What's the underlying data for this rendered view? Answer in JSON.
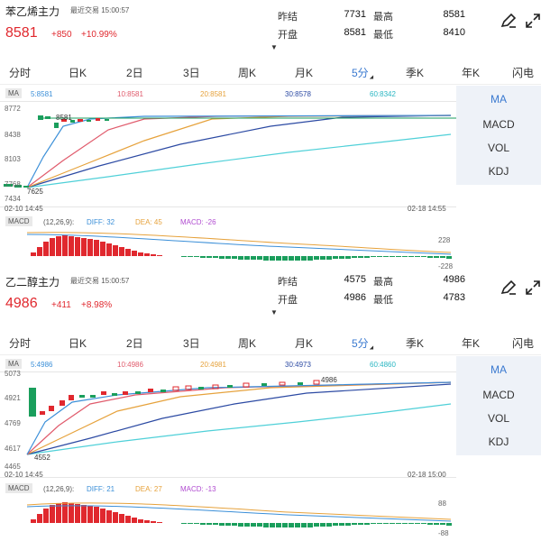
{
  "colors": {
    "up": "#e0282e",
    "down": "#1a9e5c",
    "accent": "#3a79d0",
    "ma5": "#3b8fd8",
    "ma10": "#e05b6c",
    "ma20": "#e6a23c",
    "ma30": "#2c4aa3",
    "ma60": "#4fd0d8"
  },
  "tabs": [
    "分时",
    "日K",
    "2日",
    "3日",
    "周K",
    "月K",
    "5分",
    "季K",
    "年K",
    "闪电"
  ],
  "active_tab": "5分",
  "side_options": [
    "MA",
    "MACD",
    "VOL",
    "KDJ"
  ],
  "icons": {
    "draw": "pencil-icon",
    "expand": "expand-icon"
  },
  "panels": [
    {
      "name": "苯乙烯主力",
      "recent": "最近交易 15:00:57",
      "price": "8581",
      "change": "+850",
      "change_pct": "+10.99%",
      "stats": [
        {
          "label": "昨结",
          "value": "7731"
        },
        {
          "label": "最高",
          "value": "8581"
        },
        {
          "label": "开盘",
          "value": "8581"
        },
        {
          "label": "最低",
          "value": "8410"
        }
      ],
      "ma": {
        "tag": "MA",
        "ma5": "5:8581",
        "ma10": "10:8581",
        "ma20": "20:8581",
        "ma30": "30:8578",
        "ma60": "60:8342"
      },
      "y_labels": [
        "8772",
        "8438",
        "8103",
        "7768",
        "7434"
      ],
      "marks": {
        "high": "8581",
        "low": "7625"
      },
      "time_start": "02-10 14:45",
      "time_end": "02-18 14:55",
      "macd": {
        "tag": "MACD",
        "params": "(12,26,9):",
        "diff": "DIFF: 32",
        "dea": "DEA: 45",
        "macd": "MACD: -26",
        "top": "228",
        "bottom": "-228"
      }
    },
    {
      "name": "乙二醇主力",
      "recent": "最近交易 15:00:57",
      "price": "4986",
      "change": "+411",
      "change_pct": "+8.98%",
      "stats": [
        {
          "label": "昨结",
          "value": "4575"
        },
        {
          "label": "最高",
          "value": "4986"
        },
        {
          "label": "开盘",
          "value": "4986"
        },
        {
          "label": "最低",
          "value": "4783"
        }
      ],
      "ma": {
        "tag": "MA",
        "ma5": "5:4986",
        "ma10": "10:4986",
        "ma20": "20:4981",
        "ma30": "30:4973",
        "ma60": "60:4860"
      },
      "y_labels": [
        "5073",
        "4921",
        "4769",
        "4617",
        "4465"
      ],
      "marks": {
        "high": "4986",
        "low": "4552"
      },
      "time_start": "02-10 14:45",
      "time_end": "02-18 15:00",
      "macd": {
        "tag": "MACD",
        "params": "(12,26,9):",
        "diff": "DIFF: 21",
        "dea": "DEA: 27",
        "macd": "MACD: -13",
        "top": "88",
        "bottom": "-88"
      }
    }
  ]
}
